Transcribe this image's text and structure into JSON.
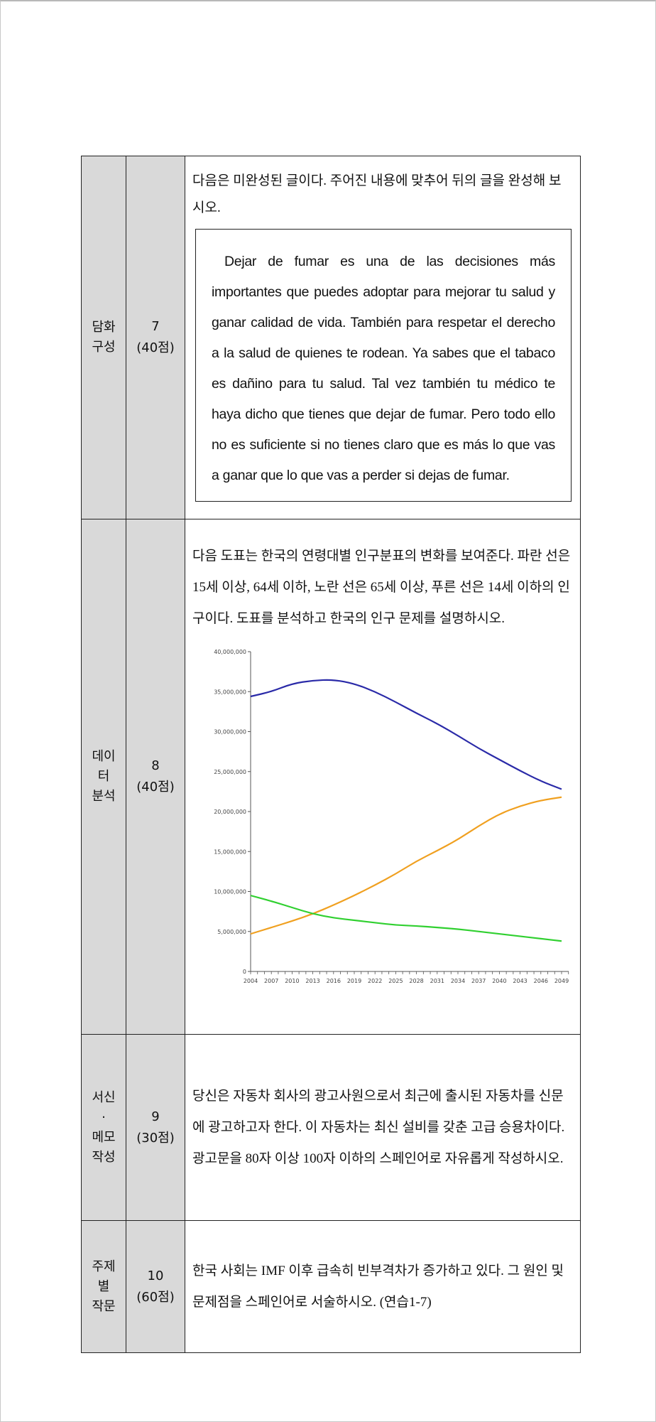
{
  "rows": [
    {
      "category": [
        "담화",
        "구성"
      ],
      "number": "7",
      "points": "(40점)",
      "instruction": "다음은 미완성된 글이다. 주어진 내용에 맞추어 뒤의 글을 완성해 보시오.",
      "passage": "Dejar de fumar es una de las decisiones más importantes que puedes adoptar para mejorar tu salud y ganar calidad de vida. También para respetar el derecho a la salud de quienes te rodean. Ya sabes que el tabaco es dañino para tu salud. Tal vez también tu médico te haya dicho que tienes que dejar de fumar. Pero todo ello no es suficiente si no tienes claro que es más lo que vas a ganar que lo que vas a perder si dejas de fumar."
    },
    {
      "category": [
        "데이",
        "터",
        "분석"
      ],
      "number": "8",
      "points": "(40점)",
      "instruction": "다음 도표는 한국의 연령대별 인구분표의 변화를 보여준다. 파란 선은 15세 이상, 64세 이하, 노란 선은 65세 이상, 푸른 선은 14세 이하의 인구이다. 도표를 분석하고 한국의 인구 문제를 설명하시오."
    },
    {
      "category": [
        "서신",
        "·",
        "메모",
        "작성"
      ],
      "number": "9",
      "points": "(30점)",
      "lines": [
        "당신은 자동차 회사의 광고사원으로서 최근에 출시된 자동차를 신문에 광고하고자 한다. 이 자동차는 최신 설비를 갖춘 고급 승용차이다.",
        "광고문을 80자 이상 100자 이하의 스페인어로 자유롭게 작성하시오."
      ]
    },
    {
      "category": [
        "주제",
        "별",
        "작문"
      ],
      "number": "10",
      "points": "(60점)",
      "instruction": "한국 사회는 IMF 이후 급속히 빈부격차가 증가하고 있다. 그 원인 및 문제점을 스페인어로 서술하시오. (연습1-7)"
    }
  ],
  "chart_data": {
    "type": "line",
    "x": [
      2004,
      2007,
      2010,
      2013,
      2016,
      2019,
      2022,
      2025,
      2028,
      2031,
      2034,
      2037,
      2040,
      2043,
      2046,
      2049
    ],
    "x_tick_labels": [
      "2004",
      "2007",
      "2010",
      "2013",
      "2016",
      "2019",
      "2022",
      "2025",
      "2028",
      "2031",
      "2034",
      "2037",
      "2040",
      "2043",
      "2046",
      "2049"
    ],
    "y_tick_labels": [
      "0",
      "5,000,000",
      "10,000,000",
      "15,000,000",
      "20,000,000",
      "25,000,000",
      "30,000,000",
      "35,000,000",
      "40,000,000"
    ],
    "ylim": [
      0,
      40000000
    ],
    "grid": false,
    "series": [
      {
        "color": "#2a2aa8",
        "values": [
          34400000,
          35000000,
          36000000,
          36400000,
          36500000,
          36000000,
          35000000,
          33700000,
          32300000,
          31000000,
          29500000,
          27900000,
          26500000,
          25100000,
          23800000,
          22800000
        ]
      },
      {
        "color": "#f0a020",
        "values": [
          4700000,
          5500000,
          6300000,
          7200000,
          8300000,
          9500000,
          10800000,
          12200000,
          13800000,
          15100000,
          16500000,
          18200000,
          19700000,
          20700000,
          21400000,
          21800000
        ]
      },
      {
        "color": "#30d030",
        "values": [
          9500000,
          8800000,
          8000000,
          7200000,
          6700000,
          6400000,
          6100000,
          5800000,
          5700000,
          5500000,
          5300000,
          5000000,
          4700000,
          4400000,
          4100000,
          3800000
        ]
      }
    ]
  }
}
